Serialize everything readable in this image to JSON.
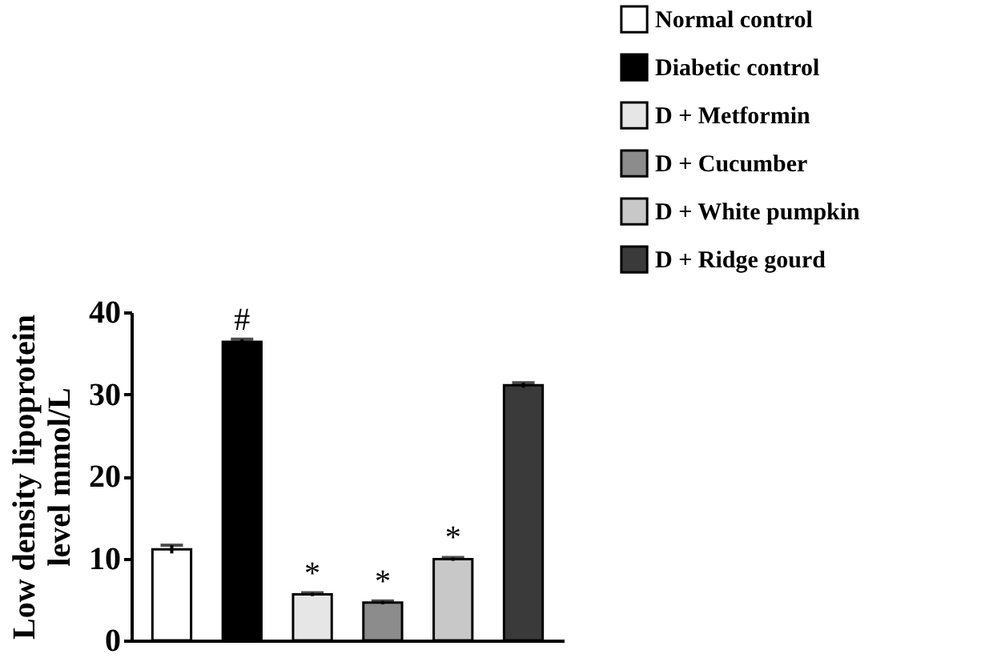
{
  "chart_data": {
    "type": "bar",
    "ylabel": "Low density lipoprotein\nlevel mmol/L",
    "categories": [
      null,
      null,
      null,
      null,
      null,
      null
    ],
    "series": [
      {
        "name": "Normal control",
        "color": "#ffffff",
        "values": [
          11.1,
          null,
          null,
          null,
          null,
          null
        ],
        "errors": [
          0.5,
          null,
          null,
          null,
          null,
          null
        ]
      },
      {
        "name": "Diabetic control",
        "color": "#000000",
        "values": [
          null,
          36.4,
          null,
          null,
          null,
          null
        ],
        "errors": [
          null,
          0.3,
          null,
          null,
          null,
          null
        ]
      },
      {
        "name": "D + Metformin",
        "color": "#e6e6e6",
        "values": [
          null,
          null,
          5.6,
          null,
          null,
          null
        ],
        "errors": [
          null,
          null,
          0.2,
          null,
          null,
          null
        ]
      },
      {
        "name": "D + Cucumber",
        "color": "#8c8c8c",
        "values": [
          null,
          null,
          null,
          4.6,
          null,
          null
        ],
        "errors": [
          null,
          null,
          null,
          0.2,
          null,
          null
        ]
      },
      {
        "name": "D + White pumpkin",
        "color": "#c8c8c8",
        "values": [
          null,
          null,
          null,
          null,
          9.9,
          null
        ],
        "errors": [
          null,
          null,
          null,
          null,
          0.2,
          null
        ]
      },
      {
        "name": "D + Ridge gourd",
        "color": "#3a3a3a",
        "values": [
          null,
          null,
          null,
          null,
          null,
          31.1
        ],
        "errors": [
          null,
          null,
          null,
          null,
          null,
          0.3
        ]
      }
    ],
    "ylim": [
      0,
      40
    ],
    "yticks": [
      0,
      10,
      20,
      30,
      40
    ],
    "grid": false,
    "legend": "top right",
    "tick_labels": "y",
    "annotations": [
      {
        "text": "#",
        "y": 36.7
      },
      {
        "text": "*",
        "y": 5.8
      },
      {
        "text": "*",
        "y": 4.8
      },
      {
        "text": "*",
        "y": 10.1
      }
    ]
  }
}
